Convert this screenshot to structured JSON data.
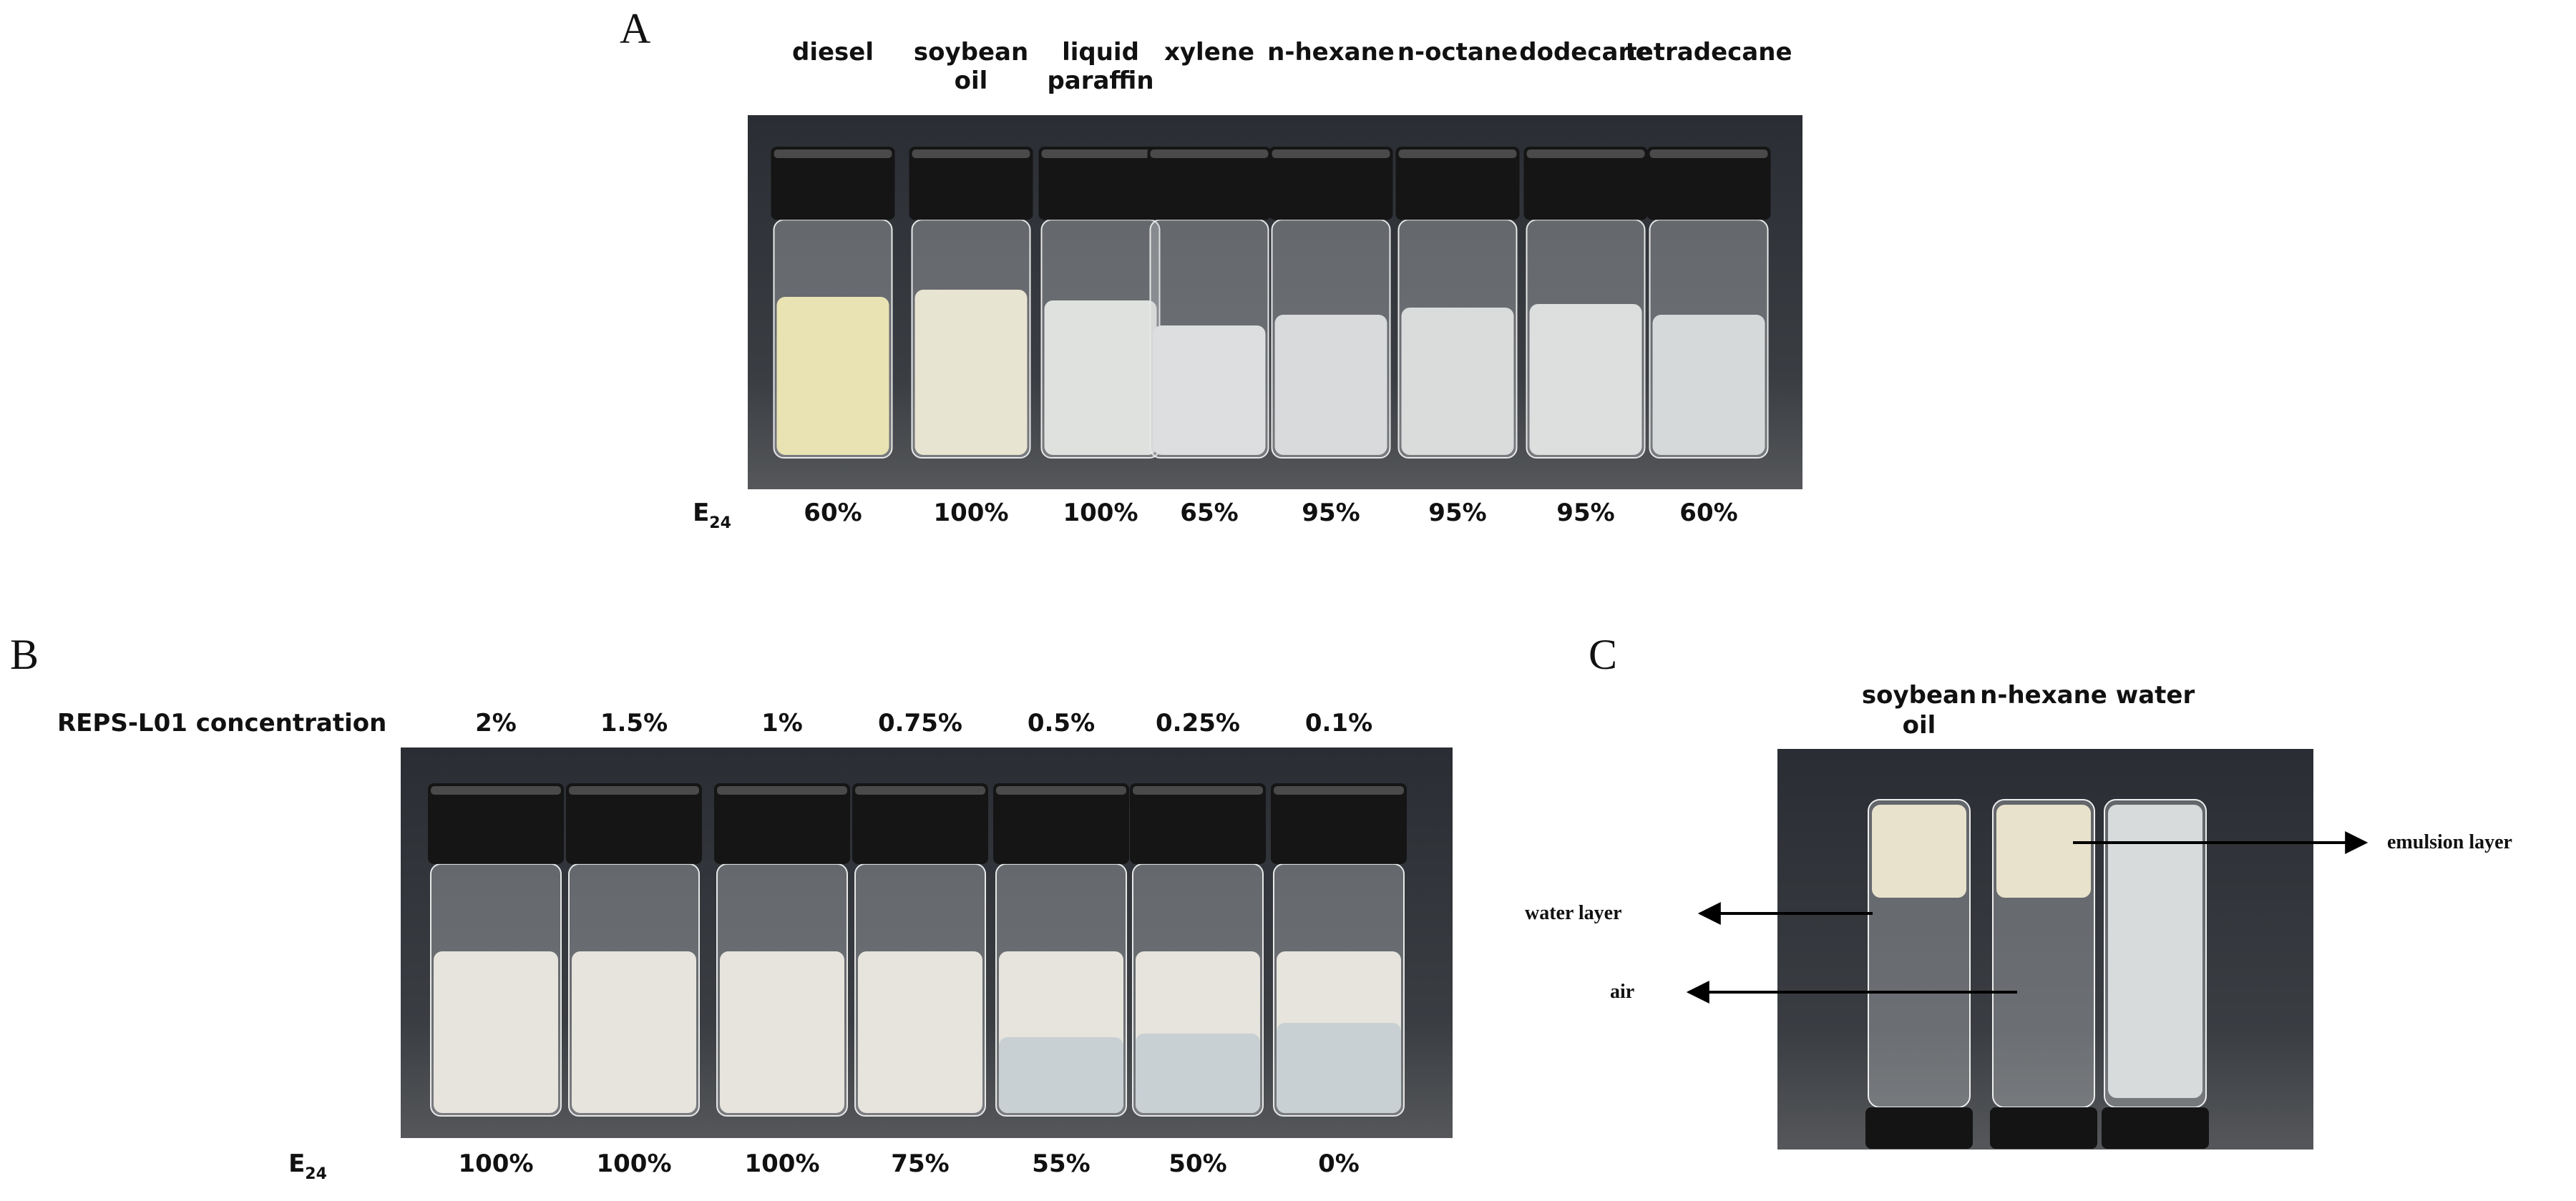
{
  "panel_a": {
    "letter": "A",
    "samples": [
      [
        "diesel"
      ],
      [
        "soybean",
        "oil"
      ],
      [
        "liquid",
        "paraffin"
      ],
      [
        "xylene"
      ],
      [
        "n-hexane"
      ],
      [
        "n-octane"
      ],
      [
        "dodecane"
      ],
      [
        "tetradecane"
      ]
    ],
    "e24_label": "E",
    "e24_sub": "24",
    "e24": [
      "60%",
      "100%",
      "100%",
      "65%",
      "95%",
      "95%",
      "95%",
      "60%"
    ]
  },
  "panel_b": {
    "letter": "B",
    "row_label": "REPS-L01 concentration",
    "concentrations": [
      "2%",
      "1.5%",
      "1%",
      "0.75%",
      "0.5%",
      "0.25%",
      "0.1%"
    ],
    "e24_label": "E",
    "e24_sub": "24",
    "e24": [
      "100%",
      "100%",
      "100%",
      "75%",
      "55%",
      "50%",
      "0%"
    ]
  },
  "panel_c": {
    "letter": "C",
    "samples": [
      [
        "soybean",
        "oil"
      ],
      [
        "n-hexane"
      ],
      [
        "water"
      ]
    ],
    "annotations": [
      "water layer",
      "air",
      "emulsion layer"
    ]
  }
}
